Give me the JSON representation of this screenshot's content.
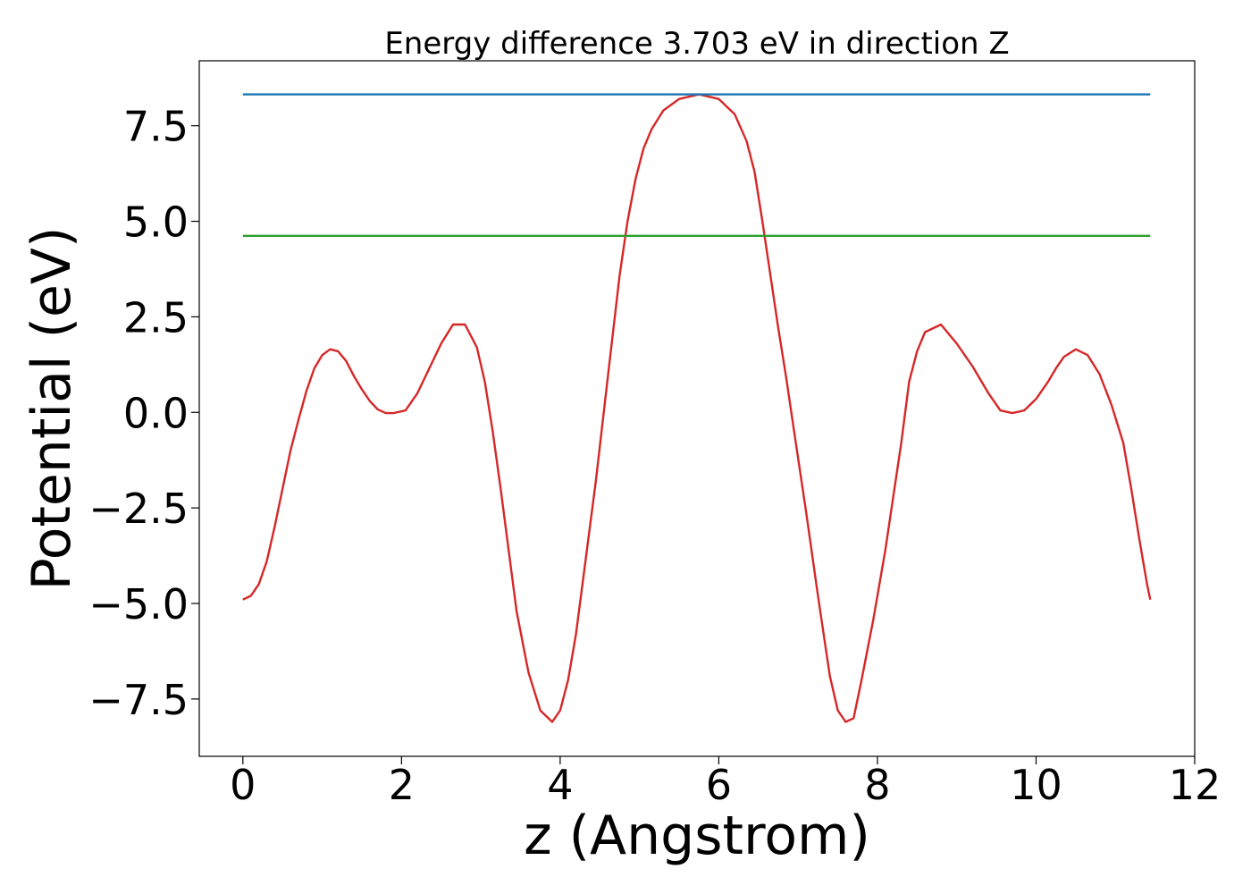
{
  "chart_data": {
    "type": "line",
    "title": "Energy difference 3.703 eV in direction Z",
    "xlabel": "z (Angstrom)",
    "ylabel": "Potential (eV)",
    "xlim": [
      -0.55,
      12.0
    ],
    "ylim": [
      -9.0,
      9.2
    ],
    "xticks": [
      0,
      2,
      4,
      6,
      8,
      10,
      12
    ],
    "yticks": [
      -7.5,
      -5.0,
      -2.5,
      0.0,
      2.5,
      5.0,
      7.5
    ],
    "xtick_labels": [
      "0",
      "2",
      "4",
      "6",
      "8",
      "10",
      "12"
    ],
    "ytick_labels": [
      "−7.5",
      "−5.0",
      "−2.5",
      "0.0",
      "2.5",
      "5.0",
      "7.5"
    ],
    "grid": false,
    "series": [
      {
        "color": "#d62728",
        "x": [
          0,
          0.1,
          0.2,
          0.3,
          0.4,
          0.5,
          0.6,
          0.7,
          0.8,
          0.9,
          1.0,
          1.1,
          1.2,
          1.3,
          1.4,
          1.5,
          1.6,
          1.7,
          1.8,
          1.9,
          2.05,
          2.2,
          2.35,
          2.5,
          2.65,
          2.8,
          2.95,
          3.05,
          3.15,
          3.25,
          3.35,
          3.45,
          3.6,
          3.75,
          3.9,
          4.0,
          4.1,
          4.2,
          4.3,
          4.45,
          4.6,
          4.75,
          4.85,
          4.95,
          5.05,
          5.15,
          5.3,
          5.5,
          5.75,
          6.0,
          6.2,
          6.35,
          6.45,
          6.55,
          6.65,
          6.75,
          6.85,
          6.95,
          7.1,
          7.25,
          7.4,
          7.5,
          7.6,
          7.7,
          7.8,
          7.95,
          8.1,
          8.2,
          8.3,
          8.4,
          8.5,
          8.6,
          8.8,
          9.0,
          9.2,
          9.4,
          9.55,
          9.7,
          9.85,
          10.0,
          10.15,
          10.25,
          10.35,
          10.5,
          10.65,
          10.8,
          10.95,
          11.1,
          11.2,
          11.3,
          11.4,
          11.44
        ],
        "y": [
          -4.9,
          -4.8,
          -4.5,
          -3.9,
          -3.0,
          -2.0,
          -1.0,
          -0.2,
          0.55,
          1.15,
          1.5,
          1.65,
          1.6,
          1.35,
          0.95,
          0.6,
          0.3,
          0.08,
          -0.02,
          -0.02,
          0.05,
          0.5,
          1.15,
          1.8,
          2.3,
          2.3,
          1.7,
          0.8,
          -0.5,
          -2.0,
          -3.6,
          -5.2,
          -6.8,
          -7.8,
          -8.1,
          -7.8,
          -7.0,
          -5.8,
          -4.2,
          -1.8,
          0.9,
          3.6,
          5.0,
          6.1,
          6.9,
          7.4,
          7.9,
          8.2,
          8.32,
          8.2,
          7.8,
          7.1,
          6.3,
          5.0,
          3.6,
          2.2,
          0.9,
          -0.5,
          -2.6,
          -4.8,
          -6.9,
          -7.8,
          -8.1,
          -8.0,
          -7.0,
          -5.4,
          -3.6,
          -2.2,
          -0.8,
          0.8,
          1.6,
          2.1,
          2.3,
          1.8,
          1.2,
          0.5,
          0.05,
          -0.02,
          0.05,
          0.35,
          0.8,
          1.15,
          1.45,
          1.65,
          1.5,
          1.0,
          0.2,
          -0.8,
          -2.0,
          -3.3,
          -4.5,
          -4.9
        ]
      },
      {
        "color": "#1f77b4",
        "x": [
          0,
          11.44
        ],
        "y": [
          8.32,
          8.32
        ]
      },
      {
        "color": "#2ca02c",
        "x": [
          0,
          11.44
        ],
        "y": [
          4.62,
          4.62
        ]
      }
    ]
  }
}
